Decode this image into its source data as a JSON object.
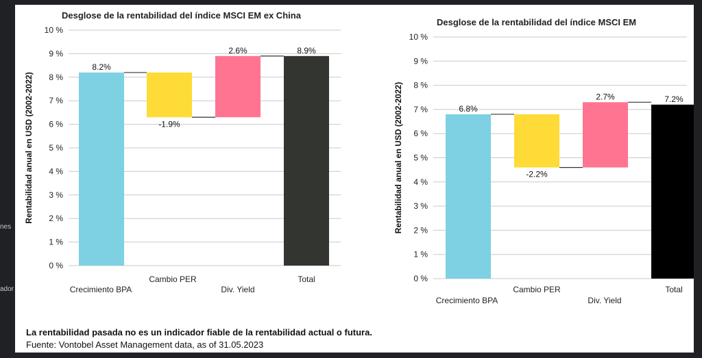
{
  "sidebar_fragments": [
    "nes",
    "ador"
  ],
  "colors": {
    "eps": "#7ed0e3",
    "per": "#fedb36",
    "div": "#fe7491",
    "total1": "#333531",
    "total2": "#000000",
    "grid": "#c9c9c9"
  },
  "chart_data": [
    {
      "type": "waterfall",
      "title": "Desglose de la rentabilidad del índice MSCI EM ex China",
      "ylabel": "Rentabilidad anual en USD (2002-2022)",
      "xlabel": "",
      "ylim": [
        0,
        10
      ],
      "yticks": [
        "0 %",
        "1 %",
        "2 %",
        "3 %",
        "4 %",
        "5 %",
        "6 %",
        "7 %",
        "8 %",
        "9 %",
        "10 %"
      ],
      "grid": true,
      "categories": [
        "Crecimiento BPA",
        "Cambio PER",
        "Div. Yield",
        "Total"
      ],
      "values": [
        8.2,
        -1.9,
        2.6,
        8.9
      ],
      "labels": [
        "8.2%",
        "-1.9%",
        "2.6%",
        "8.9%"
      ],
      "kinds": [
        "base",
        "delta",
        "delta",
        "total"
      ]
    },
    {
      "type": "waterfall",
      "title": "Desglose de la rentabilidad del índice MSCI EM",
      "ylabel": "Rentabilidad anual en USD (2002-2022)",
      "xlabel": "",
      "ylim": [
        0,
        10
      ],
      "yticks": [
        "0 %",
        "1 %",
        "2 %",
        "3 %",
        "4 %",
        "5 %",
        "6 %",
        "7 %",
        "8 %",
        "9 %",
        "10 %"
      ],
      "grid": true,
      "categories": [
        "Crecimiento BPA",
        "Cambio PER",
        "Div. Yield",
        "Total"
      ],
      "values": [
        6.8,
        -2.2,
        2.7,
        7.2
      ],
      "labels": [
        "6.8%",
        "-2.2%",
        "2.7%",
        "7.2%"
      ],
      "kinds": [
        "base",
        "delta",
        "delta",
        "total"
      ]
    }
  ],
  "footer": {
    "disclaimer": "La rentabilidad pasada no es un indicador fiable de la rentabilidad actual o futura.",
    "source": "Fuente: Vontobel Asset Management data, as of 31.05.2023"
  }
}
